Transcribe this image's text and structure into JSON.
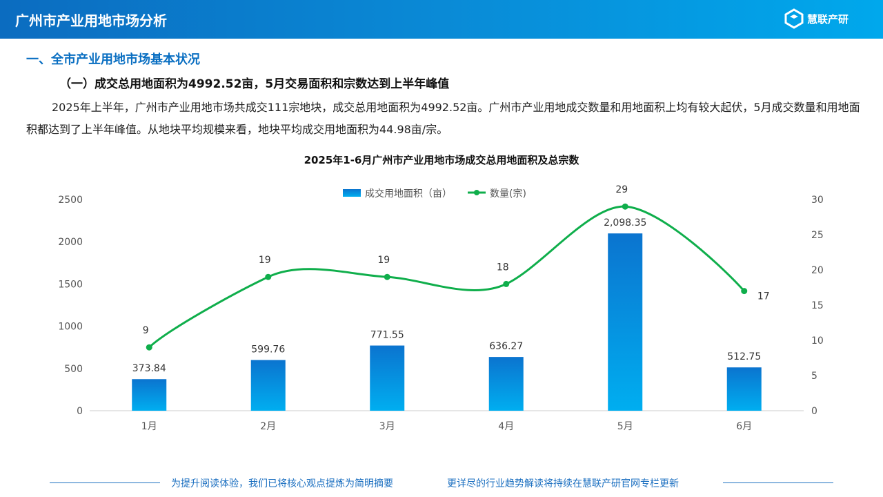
{
  "header": {
    "title": "广州市产业用地市场分析",
    "logo_text": "慧联产研"
  },
  "section": {
    "heading": "一、全市产业用地市场基本状况",
    "subheading": "（一）成交总用地面积为4992.52亩，5月交易面积和宗数达到上半年峰值",
    "paragraph": "2025年上半年，广州市产业用地市场共成交111宗地块，成交总用地面积为4992.52亩。广州市产业用地成交数量和用地面积上均有较大起伏，5月成交数量和用地面积都达到了上半年峰值。从地块平均规模来看，地块平均成交用地面积为44.98亩/宗。"
  },
  "chart_data": {
    "type": "bar+line",
    "title": "2025年1-6月广州市产业用地市场成交总用地面积及总宗数",
    "categories": [
      "1月",
      "2月",
      "3月",
      "4月",
      "5月",
      "6月"
    ],
    "series": [
      {
        "name": "成交用地面积（亩）",
        "type": "bar",
        "axis": "left",
        "values": [
          373.84,
          599.76,
          771.55,
          636.27,
          2098.35,
          512.75
        ],
        "labels": [
          "373.84",
          "599.76",
          "771.55",
          "636.27",
          "2,098.35",
          "512.75"
        ],
        "color": "#0a84d8"
      },
      {
        "name": "数量(宗)",
        "type": "line",
        "axis": "right",
        "values": [
          9,
          19,
          19,
          18,
          29,
          17
        ],
        "labels": [
          "9",
          "19",
          "19",
          "18",
          "29",
          "17"
        ],
        "color": "#0fae4b"
      }
    ],
    "left_axis": {
      "ylim": [
        0,
        2500
      ],
      "ticks": [
        "0",
        "500",
        "1000",
        "1500",
        "2000",
        "2500"
      ]
    },
    "right_axis": {
      "ylim": [
        0,
        30
      ],
      "ticks": [
        "0",
        "5",
        "10",
        "15",
        "20",
        "25",
        "30"
      ]
    },
    "legend": "top-center",
    "grid": false
  },
  "footer": {
    "left": "为提升阅读体验，我们已将核心观点提炼为简明摘要",
    "right": "更详尽的行业趋势解读将持续在慧联产研官网专栏更新"
  }
}
